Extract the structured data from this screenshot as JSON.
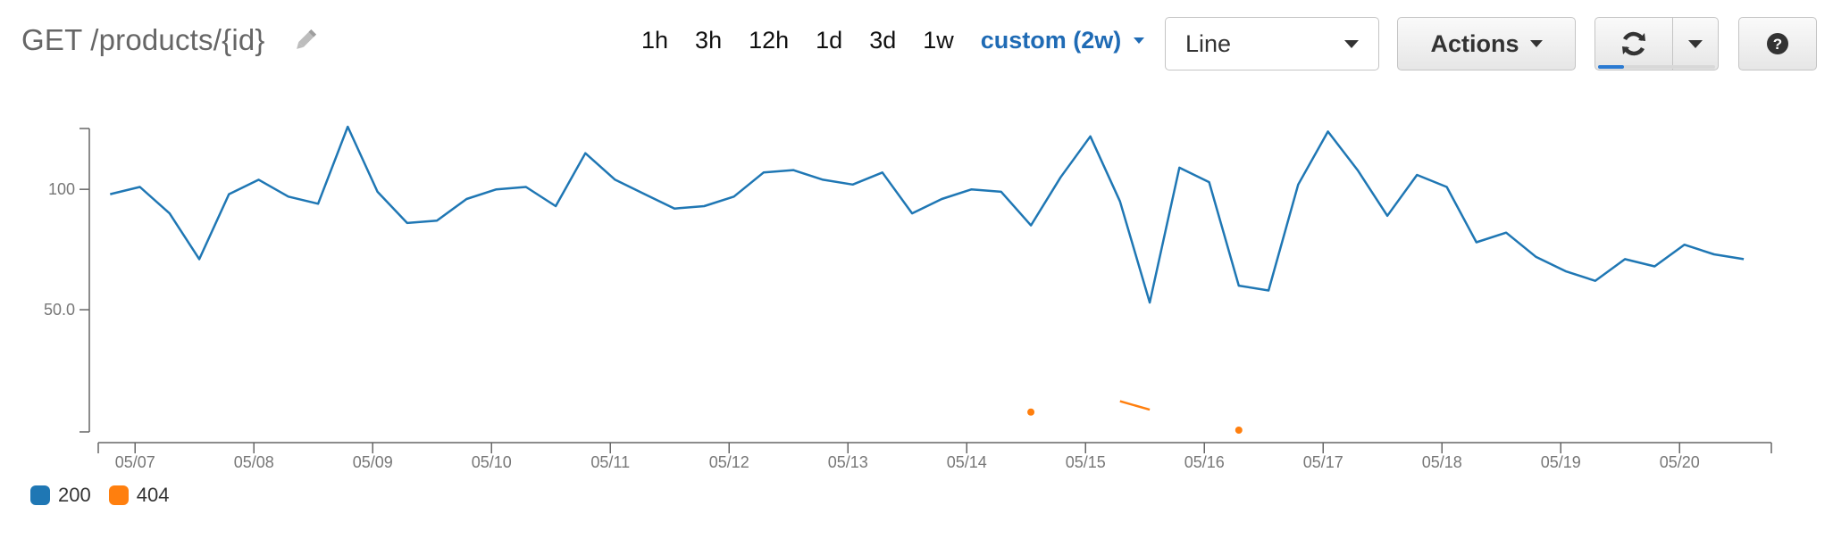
{
  "header": {
    "title": "GET /products/{id}",
    "edit_icon": "pencil-icon"
  },
  "time_ranges": [
    "1h",
    "3h",
    "12h",
    "1d",
    "3d",
    "1w"
  ],
  "active_range": "custom (2w)",
  "view_select": {
    "value": "Line"
  },
  "actions": {
    "label": "Actions"
  },
  "refresh": {
    "icon": "refresh-icon",
    "dropdown_icon": "caret-down-icon",
    "progress": 0.22
  },
  "help": {
    "icon": "question-icon"
  },
  "colors": {
    "s200": "#1f77b4",
    "s404": "#ff7f0e",
    "accent": "#1f6bb5"
  },
  "legend": [
    {
      "label": "200",
      "color": "#1f77b4"
    },
    {
      "label": "404",
      "color": "#ff7f0e"
    }
  ],
  "chart_data": {
    "type": "line",
    "x_tick_labels": [
      "05/07",
      "05/08",
      "05/09",
      "05/10",
      "05/11",
      "05/12",
      "05/13",
      "05/14",
      "05/15",
      "05/16",
      "05/17",
      "05/18",
      "05/19",
      "05/20"
    ],
    "y_tick_labels": [
      "100",
      "50.0"
    ],
    "y_ticks": [
      100,
      50
    ],
    "xlim": [
      6.69,
      20.75
    ],
    "ylim": [
      0,
      126
    ],
    "grid": false,
    "legend_position": "bottom-left",
    "series": [
      {
        "name": "200",
        "color": "#1f77b4",
        "points": [
          [
            6.79,
            98
          ],
          [
            7.04,
            101
          ],
          [
            7.29,
            90
          ],
          [
            7.54,
            71
          ],
          [
            7.79,
            98
          ],
          [
            8.04,
            104
          ],
          [
            8.29,
            97
          ],
          [
            8.54,
            94
          ],
          [
            8.79,
            126
          ],
          [
            9.04,
            99
          ],
          [
            9.29,
            86
          ],
          [
            9.54,
            87
          ],
          [
            9.79,
            96
          ],
          [
            10.04,
            100
          ],
          [
            10.29,
            101
          ],
          [
            10.54,
            93
          ],
          [
            10.79,
            115
          ],
          [
            11.04,
            104
          ],
          [
            11.29,
            98
          ],
          [
            11.54,
            92
          ],
          [
            11.79,
            93
          ],
          [
            12.04,
            97
          ],
          [
            12.29,
            107
          ],
          [
            12.54,
            108
          ],
          [
            12.79,
            104
          ],
          [
            13.04,
            102
          ],
          [
            13.29,
            107
          ],
          [
            13.54,
            90
          ],
          [
            13.79,
            96
          ],
          [
            14.04,
            100
          ],
          [
            14.29,
            99
          ],
          [
            14.54,
            85
          ],
          [
            14.79,
            105
          ],
          [
            15.04,
            122
          ],
          [
            15.29,
            95
          ],
          [
            15.54,
            53
          ],
          [
            15.79,
            109
          ],
          [
            16.04,
            103
          ],
          [
            16.29,
            60
          ],
          [
            16.54,
            58
          ],
          [
            16.79,
            102
          ],
          [
            17.04,
            124
          ],
          [
            17.29,
            108
          ],
          [
            17.54,
            89
          ],
          [
            17.79,
            106
          ],
          [
            18.04,
            101
          ],
          [
            18.29,
            78
          ],
          [
            18.54,
            82
          ],
          [
            18.79,
            72
          ],
          [
            19.04,
            66
          ],
          [
            19.29,
            62
          ],
          [
            19.54,
            71
          ],
          [
            19.79,
            68
          ],
          [
            20.04,
            77
          ],
          [
            20.29,
            73
          ],
          [
            20.54,
            71
          ]
        ]
      },
      {
        "name": "404",
        "color": "#ff7f0e",
        "segments": [
          [
            [
              14.54,
              7.5
            ]
          ],
          [
            [
              15.29,
              12
            ],
            [
              15.54,
              8.5
            ]
          ],
          [
            [
              16.29,
              0
            ]
          ]
        ]
      }
    ]
  }
}
